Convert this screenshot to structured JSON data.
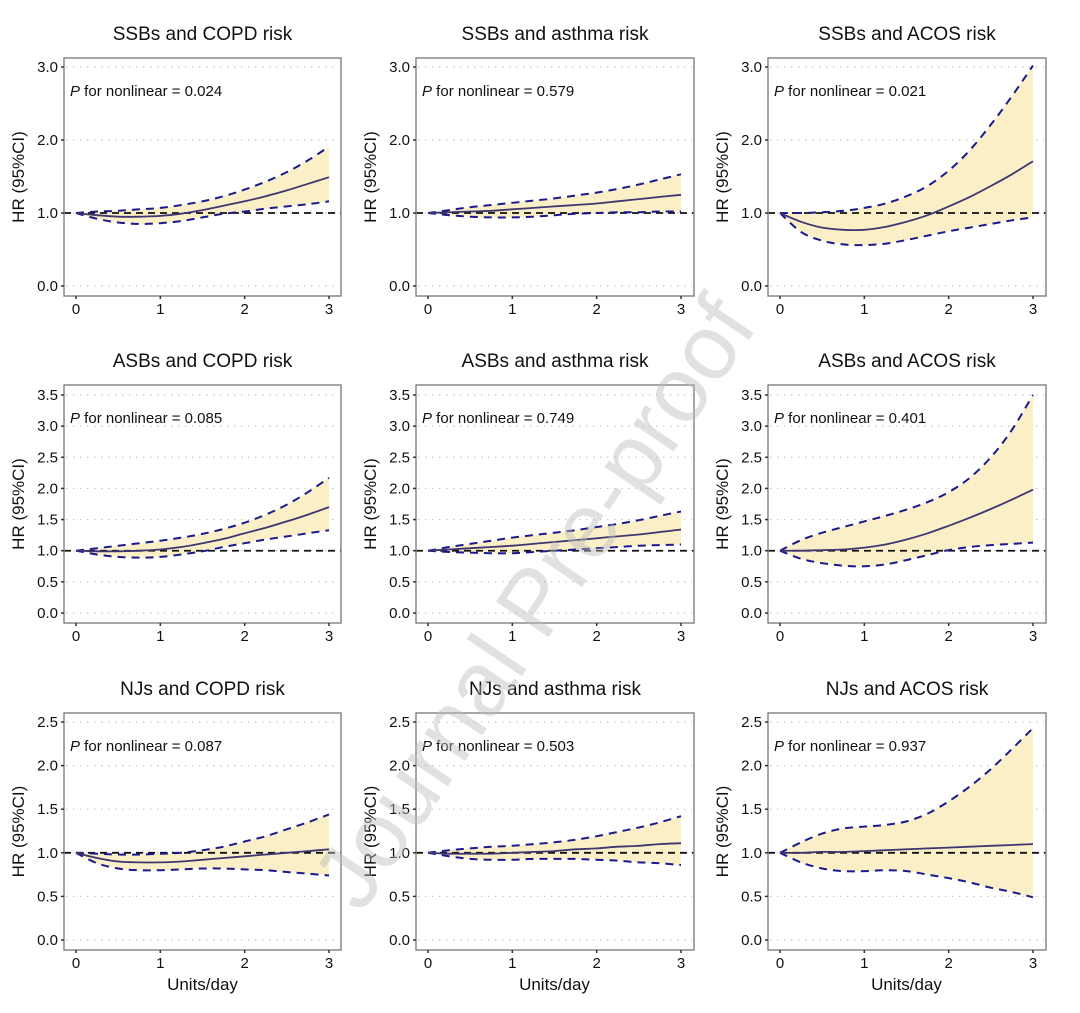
{
  "figure": {
    "watermark": "Journal Pre-proof",
    "colors": {
      "ci_fill": "#fbefc8",
      "ci_line": "#1a1a8c",
      "hr_line": "#3d3670",
      "reference": "#111111",
      "grid": "#c8c8c8",
      "frame": "#808080"
    }
  },
  "chart_data": [
    {
      "type": "line",
      "title": "SSBs and COPD risk",
      "annotation": {
        "p_label": "P",
        "text": " for nonlinear = 0.024"
      },
      "xlabel": "",
      "ylabel": "HR (95%CI)",
      "xlim": [
        0,
        3
      ],
      "ylim": [
        0,
        3
      ],
      "xticks": [
        0,
        1,
        2,
        3
      ],
      "yticks": [
        0,
        1,
        2,
        3
      ],
      "ytick_labels": [
        "0.0",
        "1.0",
        "2.0",
        "3.0"
      ],
      "reference_line": 1.0,
      "x": [
        0,
        0.25,
        0.5,
        0.75,
        1.0,
        1.25,
        1.5,
        1.75,
        2.0,
        2.25,
        2.5,
        2.75,
        3.0
      ],
      "hr": [
        1.0,
        0.97,
        0.95,
        0.95,
        0.96,
        0.99,
        1.04,
        1.1,
        1.16,
        1.23,
        1.31,
        1.4,
        1.49
      ],
      "lower": [
        1.0,
        0.92,
        0.87,
        0.85,
        0.86,
        0.89,
        0.94,
        0.99,
        1.02,
        1.06,
        1.09,
        1.12,
        1.16
      ],
      "upper": [
        1.0,
        1.02,
        1.03,
        1.05,
        1.07,
        1.11,
        1.16,
        1.23,
        1.32,
        1.43,
        1.56,
        1.72,
        1.91
      ]
    },
    {
      "type": "line",
      "title": "SSBs and asthma risk",
      "annotation": {
        "p_label": "P",
        "text": " for nonlinear = 0.579"
      },
      "xlabel": "",
      "ylabel": "HR (95%CI)",
      "xlim": [
        0,
        3
      ],
      "ylim": [
        0,
        3
      ],
      "xticks": [
        0,
        1,
        2,
        3
      ],
      "yticks": [
        0,
        1,
        2,
        3
      ],
      "ytick_labels": [
        "0.0",
        "1.0",
        "2.0",
        "3.0"
      ],
      "reference_line": 1.0,
      "x": [
        0,
        0.25,
        0.5,
        0.75,
        1.0,
        1.25,
        1.5,
        1.75,
        2.0,
        2.25,
        2.5,
        2.75,
        3.0
      ],
      "hr": [
        1.0,
        1.01,
        1.02,
        1.03,
        1.05,
        1.07,
        1.09,
        1.11,
        1.13,
        1.16,
        1.19,
        1.22,
        1.25
      ],
      "lower": [
        1.0,
        0.97,
        0.95,
        0.94,
        0.94,
        0.95,
        0.97,
        0.99,
        1.0,
        1.01,
        1.01,
        1.02,
        1.02
      ],
      "upper": [
        1.0,
        1.04,
        1.08,
        1.11,
        1.14,
        1.17,
        1.2,
        1.24,
        1.28,
        1.33,
        1.39,
        1.46,
        1.53
      ]
    },
    {
      "type": "line",
      "title": "SSBs and ACOS risk",
      "annotation": {
        "p_label": "P",
        "text": " for nonlinear = 0.021"
      },
      "xlabel": "",
      "ylabel": "HR (95%CI)",
      "xlim": [
        0,
        3
      ],
      "ylim": [
        0,
        3
      ],
      "xticks": [
        0,
        1,
        2,
        3
      ],
      "yticks": [
        0,
        1,
        2,
        3
      ],
      "ytick_labels": [
        "0.0",
        "1.0",
        "2.0",
        "3.0"
      ],
      "reference_line": 1.0,
      "x": [
        0,
        0.25,
        0.5,
        0.75,
        1.0,
        1.25,
        1.5,
        1.75,
        2.0,
        2.25,
        2.5,
        2.75,
        3.0
      ],
      "hr": [
        1.0,
        0.88,
        0.8,
        0.77,
        0.77,
        0.81,
        0.88,
        0.97,
        1.09,
        1.22,
        1.37,
        1.53,
        1.71
      ],
      "lower": [
        1.0,
        0.74,
        0.62,
        0.57,
        0.56,
        0.58,
        0.63,
        0.69,
        0.75,
        0.8,
        0.85,
        0.9,
        0.94
      ],
      "upper": [
        1.0,
        1.0,
        1.01,
        1.03,
        1.07,
        1.13,
        1.23,
        1.37,
        1.58,
        1.86,
        2.21,
        2.6,
        3.02
      ]
    },
    {
      "type": "line",
      "title": "ASBs and COPD risk",
      "annotation": {
        "p_label": "P",
        "text": " for nonlinear = 0.085"
      },
      "xlabel": "",
      "ylabel": "HR (95%CI)",
      "xlim": [
        0,
        3
      ],
      "ylim": [
        0,
        3.5
      ],
      "xticks": [
        0,
        1,
        2,
        3
      ],
      "yticks": [
        0,
        0.5,
        1,
        1.5,
        2,
        2.5,
        3,
        3.5
      ],
      "ytick_labels": [
        "0.0",
        "0.5",
        "1.0",
        "1.5",
        "2.0",
        "2.5",
        "3.0",
        "3.5"
      ],
      "reference_line": 1.0,
      "x": [
        0,
        0.25,
        0.5,
        0.75,
        1.0,
        1.25,
        1.5,
        1.75,
        2.0,
        2.25,
        2.5,
        2.75,
        3.0
      ],
      "hr": [
        1.0,
        0.99,
        0.99,
        1.0,
        1.02,
        1.06,
        1.12,
        1.19,
        1.28,
        1.37,
        1.47,
        1.58,
        1.7
      ],
      "lower": [
        1.0,
        0.94,
        0.9,
        0.89,
        0.9,
        0.94,
        0.99,
        1.06,
        1.12,
        1.18,
        1.23,
        1.28,
        1.33
      ],
      "upper": [
        1.0,
        1.04,
        1.08,
        1.12,
        1.16,
        1.21,
        1.27,
        1.35,
        1.45,
        1.58,
        1.74,
        1.94,
        2.17
      ]
    },
    {
      "type": "line",
      "title": "ASBs and asthma risk",
      "annotation": {
        "p_label": "P",
        "text": " for nonlinear = 0.749"
      },
      "xlabel": "",
      "ylabel": "HR (95%CI)",
      "xlim": [
        0,
        3
      ],
      "ylim": [
        0,
        3.5
      ],
      "xticks": [
        0,
        1,
        2,
        3
      ],
      "yticks": [
        0,
        0.5,
        1,
        1.5,
        2,
        2.5,
        3,
        3.5
      ],
      "ytick_labels": [
        "0.0",
        "0.5",
        "1.0",
        "1.5",
        "2.0",
        "2.5",
        "3.0",
        "3.5"
      ],
      "reference_line": 1.0,
      "x": [
        0,
        0.25,
        0.5,
        0.75,
        1.0,
        1.25,
        1.5,
        1.75,
        2.0,
        2.25,
        2.5,
        2.75,
        3.0
      ],
      "hr": [
        1.0,
        1.02,
        1.04,
        1.06,
        1.08,
        1.11,
        1.14,
        1.17,
        1.2,
        1.23,
        1.26,
        1.3,
        1.34
      ],
      "lower": [
        1.0,
        0.98,
        0.97,
        0.96,
        0.96,
        0.98,
        1.0,
        1.02,
        1.04,
        1.06,
        1.08,
        1.09,
        1.1
      ],
      "upper": [
        1.0,
        1.06,
        1.11,
        1.16,
        1.21,
        1.25,
        1.29,
        1.33,
        1.38,
        1.43,
        1.49,
        1.56,
        1.63
      ]
    },
    {
      "type": "line",
      "title": "ASBs and ACOS risk",
      "annotation": {
        "p_label": "P",
        "text": " for nonlinear = 0.401"
      },
      "xlabel": "",
      "ylabel": "HR (95%CI)",
      "xlim": [
        0,
        3
      ],
      "ylim": [
        0,
        3.5
      ],
      "xticks": [
        0,
        1,
        2,
        3
      ],
      "yticks": [
        0,
        0.5,
        1,
        1.5,
        2,
        2.5,
        3,
        3.5
      ],
      "ytick_labels": [
        "0.0",
        "0.5",
        "1.0",
        "1.5",
        "2.0",
        "2.5",
        "3.0",
        "3.5"
      ],
      "reference_line": 1.0,
      "x": [
        0,
        0.25,
        0.5,
        0.75,
        1.0,
        1.25,
        1.5,
        1.75,
        2.0,
        2.25,
        2.5,
        2.75,
        3.0
      ],
      "hr": [
        1.0,
        1.0,
        1.01,
        1.02,
        1.05,
        1.1,
        1.18,
        1.28,
        1.4,
        1.53,
        1.67,
        1.82,
        1.98
      ],
      "lower": [
        1.0,
        0.87,
        0.8,
        0.76,
        0.75,
        0.78,
        0.85,
        0.93,
        1.01,
        1.06,
        1.09,
        1.11,
        1.13
      ],
      "upper": [
        1.0,
        1.17,
        1.29,
        1.38,
        1.47,
        1.56,
        1.66,
        1.78,
        1.94,
        2.17,
        2.5,
        2.94,
        3.5
      ]
    },
    {
      "type": "line",
      "title": "NJs and COPD risk",
      "annotation": {
        "p_label": "P",
        "text": " for nonlinear = 0.087"
      },
      "xlabel": "Units/day",
      "ylabel": "HR (95%CI)",
      "xlim": [
        0,
        3
      ],
      "ylim": [
        0,
        2.5
      ],
      "xticks": [
        0,
        1,
        2,
        3
      ],
      "yticks": [
        0,
        0.5,
        1,
        1.5,
        2,
        2.5
      ],
      "ytick_labels": [
        "0.0",
        "0.5",
        "1.0",
        "1.5",
        "2.0",
        "2.5"
      ],
      "reference_line": 1.0,
      "x": [
        0,
        0.25,
        0.5,
        0.75,
        1.0,
        1.25,
        1.5,
        1.75,
        2.0,
        2.25,
        2.5,
        2.75,
        3.0
      ],
      "hr": [
        1.0,
        0.94,
        0.9,
        0.89,
        0.89,
        0.9,
        0.92,
        0.94,
        0.96,
        0.98,
        1.0,
        1.02,
        1.04
      ],
      "lower": [
        1.0,
        0.88,
        0.82,
        0.8,
        0.8,
        0.81,
        0.82,
        0.82,
        0.81,
        0.8,
        0.78,
        0.76,
        0.74
      ],
      "upper": [
        1.0,
        0.99,
        0.98,
        0.98,
        0.99,
        1.0,
        1.03,
        1.07,
        1.13,
        1.19,
        1.27,
        1.35,
        1.44
      ]
    },
    {
      "type": "line",
      "title": "NJs and asthma risk",
      "annotation": {
        "p_label": "P",
        "text": " for nonlinear = 0.503"
      },
      "xlabel": "Units/day",
      "ylabel": "HR (95%CI)",
      "xlim": [
        0,
        3
      ],
      "ylim": [
        0,
        2.5
      ],
      "xticks": [
        0,
        1,
        2,
        3
      ],
      "yticks": [
        0,
        0.5,
        1,
        1.5,
        2,
        2.5
      ],
      "ytick_labels": [
        "0.0",
        "0.5",
        "1.0",
        "1.5",
        "2.0",
        "2.5"
      ],
      "reference_line": 1.0,
      "x": [
        0,
        0.25,
        0.5,
        0.75,
        1.0,
        1.25,
        1.5,
        1.75,
        2.0,
        2.25,
        2.5,
        2.75,
        3.0
      ],
      "hr": [
        1.0,
        0.99,
        0.99,
        0.99,
        1.0,
        1.01,
        1.02,
        1.04,
        1.05,
        1.07,
        1.08,
        1.1,
        1.11
      ],
      "lower": [
        1.0,
        0.96,
        0.93,
        0.92,
        0.92,
        0.93,
        0.93,
        0.93,
        0.92,
        0.91,
        0.89,
        0.88,
        0.86
      ],
      "upper": [
        1.0,
        1.03,
        1.05,
        1.07,
        1.08,
        1.1,
        1.12,
        1.15,
        1.19,
        1.24,
        1.29,
        1.35,
        1.42
      ]
    },
    {
      "type": "line",
      "title": "NJs and ACOS risk",
      "annotation": {
        "p_label": "P",
        "text": " for nonlinear = 0.937"
      },
      "xlabel": "Units/day",
      "ylabel": "HR (95%CI)",
      "xlim": [
        0,
        3
      ],
      "ylim": [
        0,
        2.5
      ],
      "xticks": [
        0,
        1,
        2,
        3
      ],
      "yticks": [
        0,
        0.5,
        1,
        1.5,
        2,
        2.5
      ],
      "ytick_labels": [
        "0.0",
        "0.5",
        "1.0",
        "1.5",
        "2.0",
        "2.5"
      ],
      "reference_line": 1.0,
      "x": [
        0,
        0.25,
        0.5,
        0.75,
        1.0,
        1.25,
        1.5,
        1.75,
        2.0,
        2.25,
        2.5,
        2.75,
        3.0
      ],
      "hr": [
        1.0,
        1.0,
        1.01,
        1.01,
        1.02,
        1.03,
        1.04,
        1.05,
        1.06,
        1.07,
        1.08,
        1.09,
        1.1
      ],
      "lower": [
        1.0,
        0.89,
        0.82,
        0.79,
        0.79,
        0.8,
        0.79,
        0.75,
        0.71,
        0.66,
        0.6,
        0.55,
        0.49
      ],
      "upper": [
        1.0,
        1.12,
        1.22,
        1.28,
        1.3,
        1.32,
        1.36,
        1.45,
        1.59,
        1.76,
        1.96,
        2.19,
        2.43
      ]
    }
  ]
}
